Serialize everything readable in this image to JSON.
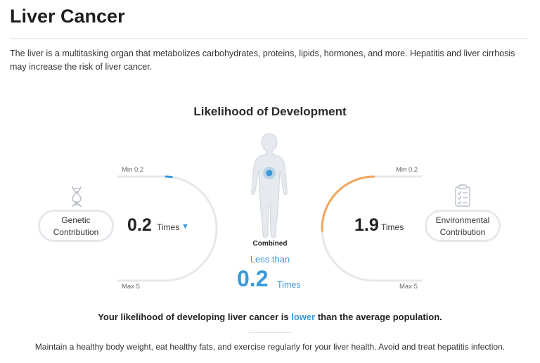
{
  "page": {
    "title": "Liver Cancer",
    "intro_line1": "The liver is a multitasking organ that metabolizes carbohydrates, proteins, lipids, hormones, and more. Hepatitis and liver cirrhosis",
    "intro_line2": "may increase the risk of liver cancer."
  },
  "likelihood": {
    "title": "Likelihood of Development",
    "genetic": {
      "label_line1": "Genetic",
      "label_line2": "Contribution",
      "min_label": "Min 0.2",
      "max_label": "Max 5",
      "value": "0.2",
      "unit": "Times",
      "trend_symbol": "▼",
      "min": 0.2,
      "max": 5,
      "level": 0.2,
      "color": "#3a9ad9",
      "icon": "dna-icon"
    },
    "environmental": {
      "label_line1": "Environmental",
      "label_line2": "Contribution",
      "min_label": "Min 0.2",
      "max_label": "Max 5",
      "value": "1.9",
      "unit": "Times",
      "min": 0.2,
      "max": 5,
      "level": 1.9,
      "color": "#f2a55c",
      "icon": "clipboard-checklist-icon"
    },
    "combined": {
      "label": "Combined",
      "qualifier": "Less than",
      "value": "0.2",
      "unit": "Times",
      "color": "#3a9ad9",
      "icon": "human-body-icon"
    }
  },
  "conclusion": {
    "prefix": "Your likelihood of developing liver cancer is",
    "highlight": "lower",
    "suffix": "than the average population."
  },
  "advice": "Maintain a healthy body weight, eat healthy fats, and exercise regularly for your liver health. Avoid and treat hepatitis infection.",
  "colors": {
    "track": "#e5e8ec",
    "accent_blue": "#3a9ad9",
    "accent_orange": "#f2a55c"
  }
}
